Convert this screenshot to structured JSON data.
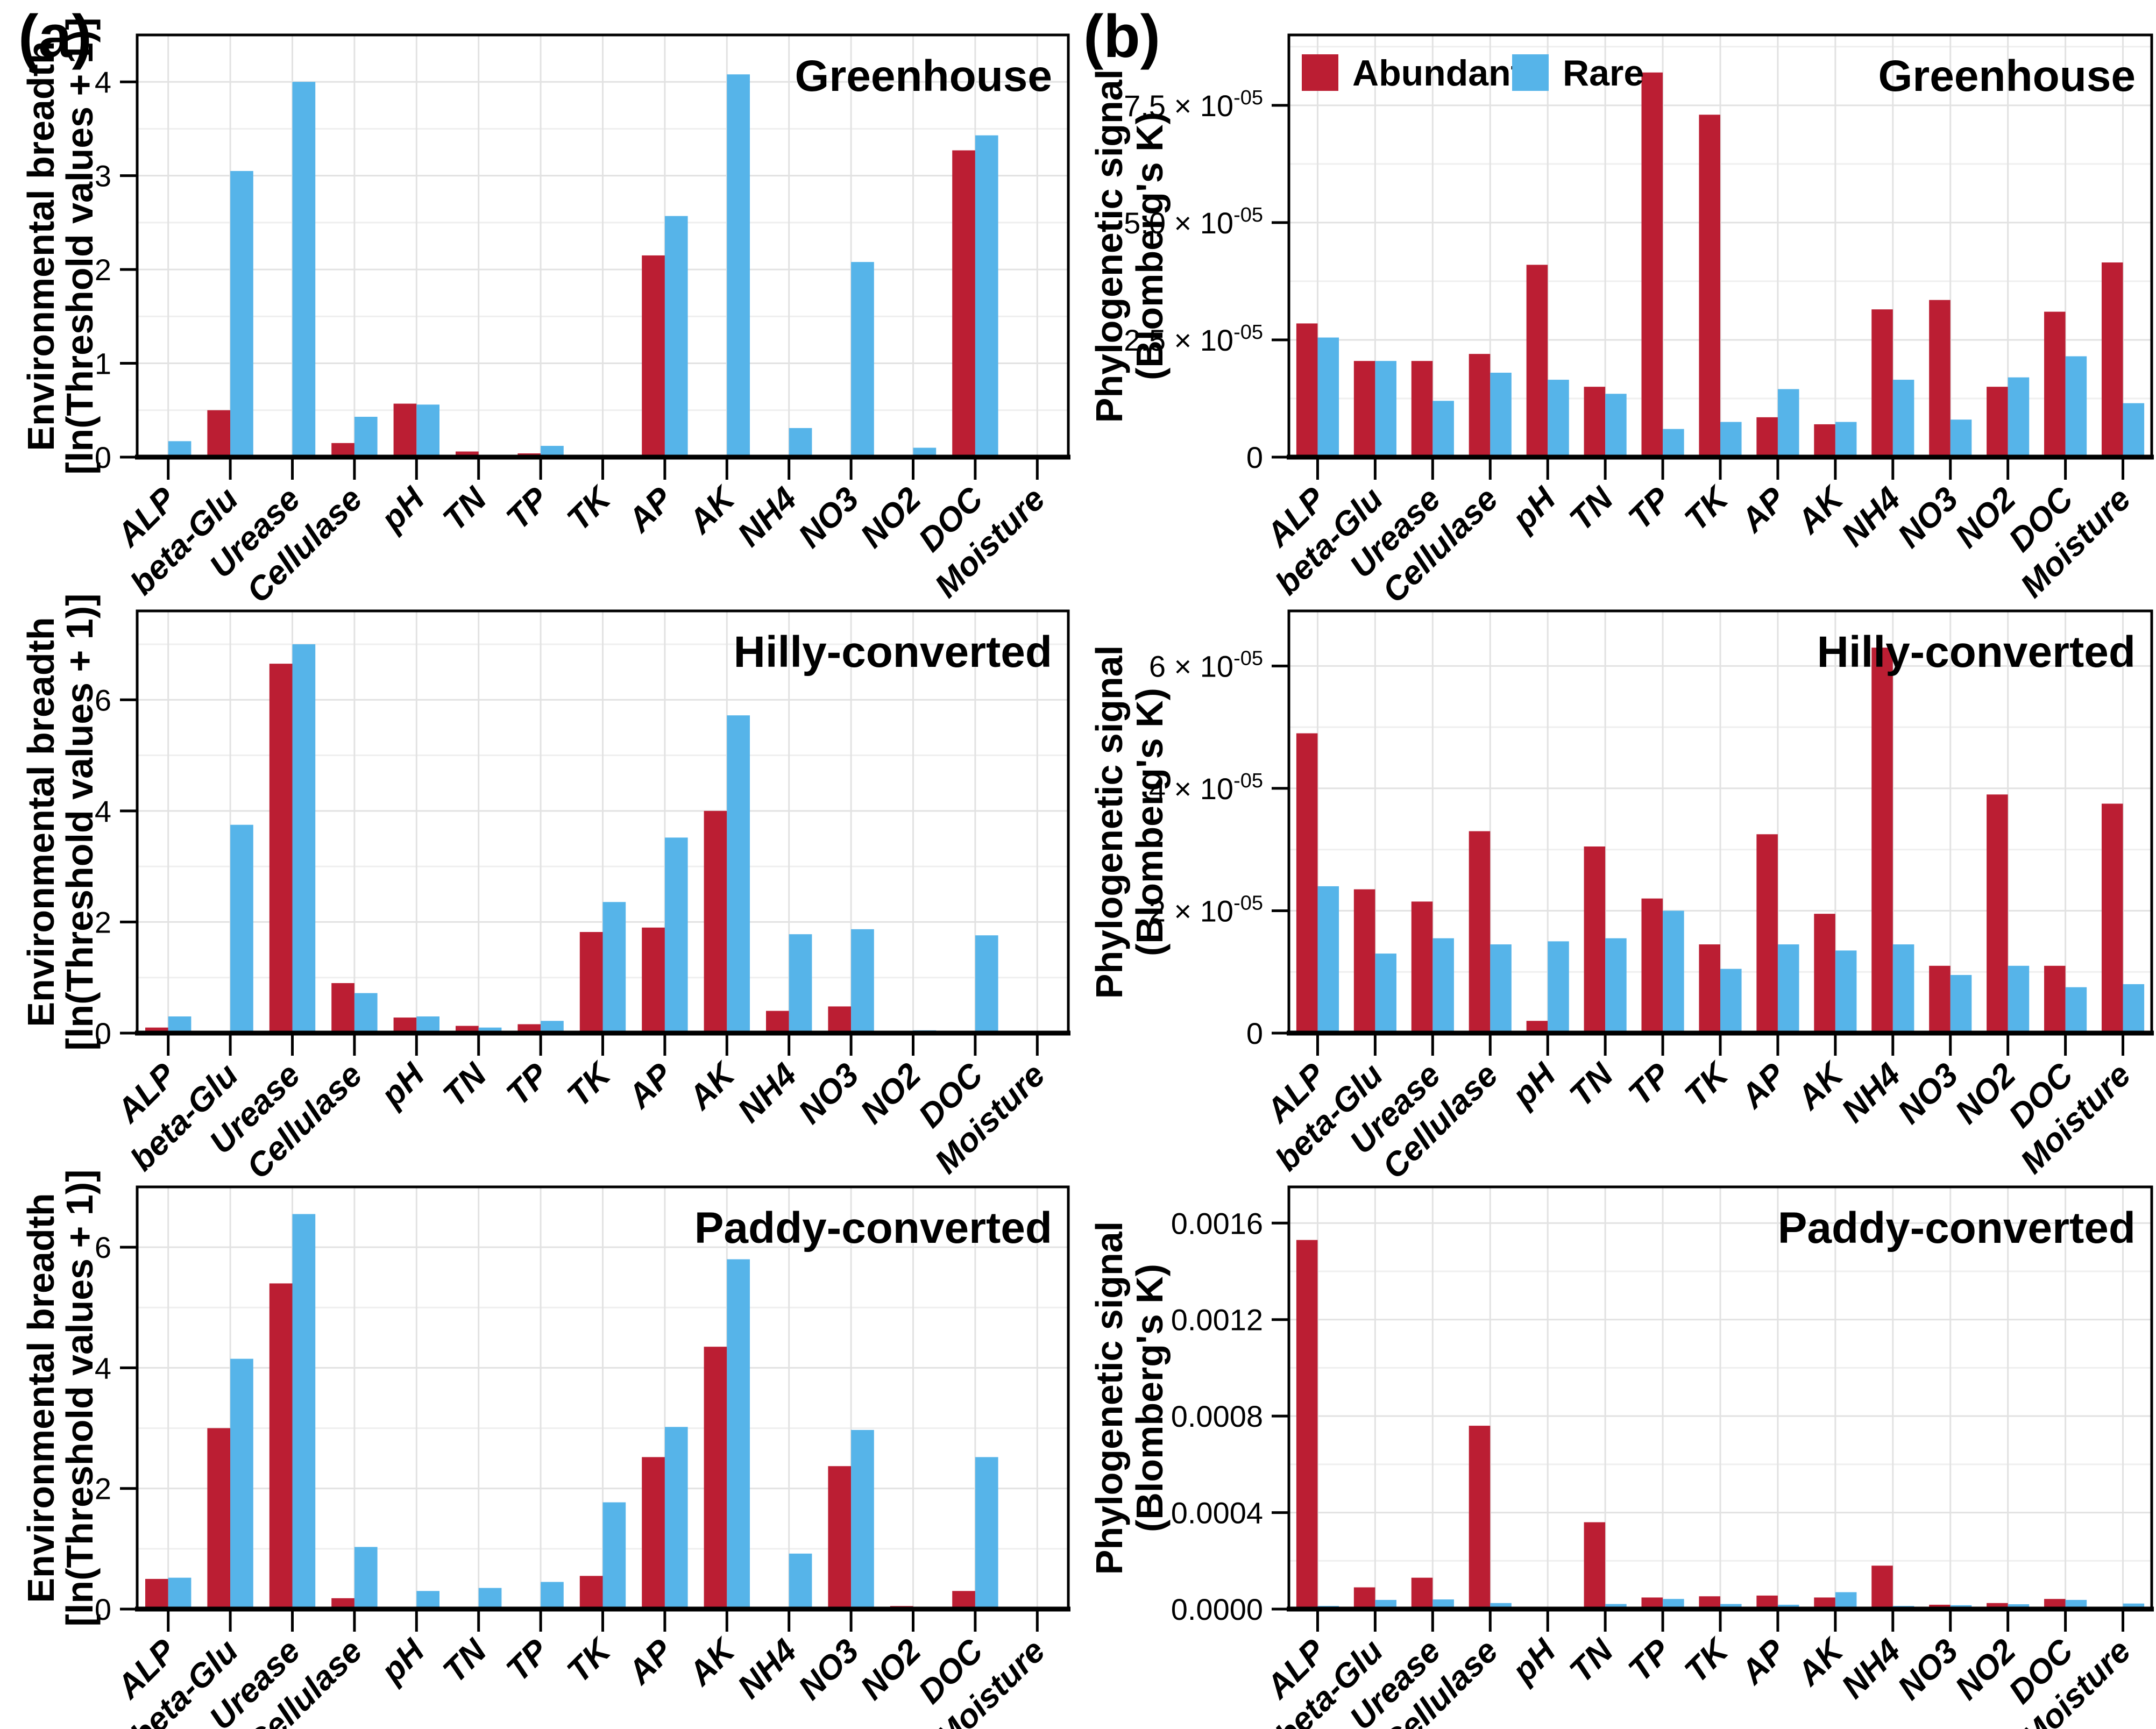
{
  "figure": {
    "label_a": "(a)",
    "label_b": "(b)"
  },
  "colors": {
    "abundant": "#bb1e33",
    "rare": "#56b4e9",
    "grid_major": "#e2e2e2",
    "grid_minor": "#efefef",
    "axis": "#000000",
    "background": "#ffffff"
  },
  "legend": {
    "abundant_label": "Abundant",
    "rare_label": "Rare"
  },
  "categories": [
    "ALP",
    "beta-Glu",
    "Urease",
    "Cellulase",
    "pH",
    "TN",
    "TP",
    "TK",
    "AP",
    "AK",
    "NH4",
    "NO3",
    "NO2",
    "DOC",
    "Moisture"
  ],
  "chart_data": [
    {
      "id": "env-greenhouse",
      "panel": "a",
      "column": "left",
      "type": "bar",
      "title": "Greenhouse",
      "ylabel": [
        "Environmental breadth",
        "[ln(Threshold values + 1)]"
      ],
      "ylim": [
        0,
        4.5
      ],
      "yticks": [
        0,
        1,
        2,
        3,
        4
      ],
      "ytick_labels": [
        "0",
        "1",
        "2",
        "3",
        "4"
      ],
      "show_legend": false,
      "series": [
        {
          "name": "Abundant",
          "values": [
            0,
            0.5,
            0,
            0.15,
            0.57,
            0.06,
            0.04,
            0,
            2.15,
            0,
            0,
            0,
            0,
            3.27,
            0
          ]
        },
        {
          "name": "Rare",
          "values": [
            0.17,
            3.05,
            4.0,
            0.43,
            0.56,
            0,
            0.12,
            0,
            2.57,
            4.08,
            0.31,
            2.08,
            0.1,
            3.43,
            0
          ]
        }
      ]
    },
    {
      "id": "phylo-greenhouse",
      "panel": "b",
      "column": "right",
      "type": "bar",
      "title": "Greenhouse",
      "ylabel": [
        "Phylogenetic signal",
        "(Blomberg's K)"
      ],
      "ylim": [
        0,
        9e-05
      ],
      "yticks": [
        0,
        2.5e-05,
        5e-05,
        7.5e-05
      ],
      "ytick_labels": [
        "0",
        "2.5 × 10^-05",
        "5.0 × 10^-05",
        "7.5 × 10^-05"
      ],
      "show_legend": true,
      "series": [
        {
          "name": "Abundant",
          "values": [
            2.85e-05,
            2.05e-05,
            2.05e-05,
            2.2e-05,
            4.1e-05,
            1.5e-05,
            8.2e-05,
            7.3e-05,
            8.5e-06,
            7e-06,
            3.15e-05,
            3.35e-05,
            1.5e-05,
            3.1e-05,
            4.15e-05
          ]
        },
        {
          "name": "Rare",
          "values": [
            2.55e-05,
            2.05e-05,
            1.2e-05,
            1.8e-05,
            1.65e-05,
            1.35e-05,
            6e-06,
            7.5e-06,
            1.45e-05,
            7.5e-06,
            1.65e-05,
            8e-06,
            1.7e-05,
            2.15e-05,
            1.15e-05
          ]
        }
      ]
    },
    {
      "id": "env-hilly",
      "panel": "a",
      "column": "left",
      "type": "bar",
      "title": "Hilly-converted",
      "ylabel": [
        "Environmental breadth",
        "[ln(Threshold values + 1)]"
      ],
      "ylim": [
        0,
        7.6
      ],
      "yticks": [
        0,
        2,
        4,
        6
      ],
      "ytick_labels": [
        "0",
        "2",
        "4",
        "6"
      ],
      "show_legend": false,
      "series": [
        {
          "name": "Abundant",
          "values": [
            0.1,
            0,
            6.65,
            0.9,
            0.28,
            0.13,
            0.16,
            1.82,
            1.9,
            4.0,
            0.4,
            0.48,
            0,
            0,
            0
          ]
        },
        {
          "name": "Rare",
          "values": [
            0.3,
            3.75,
            7.0,
            0.72,
            0.3,
            0.1,
            0.22,
            2.36,
            3.52,
            5.72,
            1.78,
            1.87,
            0.05,
            1.76,
            0
          ]
        }
      ]
    },
    {
      "id": "phylo-hilly",
      "panel": "b",
      "column": "right",
      "type": "bar",
      "title": "Hilly-converted",
      "ylabel": [
        "Phylogenetic signal",
        "(Blomberg's K)"
      ],
      "ylim": [
        0,
        6.9e-05
      ],
      "yticks": [
        0,
        2e-05,
        4e-05,
        6e-05
      ],
      "ytick_labels": [
        "0",
        "2 × 10^-05",
        "4 × 10^-05",
        "6 × 10^-05"
      ],
      "show_legend": false,
      "series": [
        {
          "name": "Abundant",
          "values": [
            4.9e-05,
            2.35e-05,
            2.15e-05,
            3.3e-05,
            2e-06,
            3.05e-05,
            2.2e-05,
            1.45e-05,
            3.25e-05,
            1.95e-05,
            6.3e-05,
            1.1e-05,
            3.9e-05,
            1.1e-05,
            3.75e-05
          ]
        },
        {
          "name": "Rare",
          "values": [
            2.4e-05,
            1.3e-05,
            1.55e-05,
            1.45e-05,
            1.5e-05,
            1.55e-05,
            2e-05,
            1.05e-05,
            1.45e-05,
            1.35e-05,
            1.45e-05,
            9.5e-06,
            1.1e-05,
            7.5e-06,
            8e-06
          ]
        }
      ]
    },
    {
      "id": "env-paddy",
      "panel": "a",
      "column": "left",
      "type": "bar",
      "title": "Paddy-converted",
      "ylabel": [
        "Environmental breadth",
        "[ln(Threshold values + 1)]"
      ],
      "ylim": [
        0,
        7.0
      ],
      "yticks": [
        0,
        2,
        4,
        6
      ],
      "ytick_labels": [
        "0",
        "2",
        "4",
        "6"
      ],
      "show_legend": false,
      "series": [
        {
          "name": "Abundant",
          "values": [
            0.5,
            3.0,
            5.4,
            0.18,
            0,
            0,
            0,
            0.55,
            2.52,
            4.35,
            0,
            2.37,
            0.05,
            0.3,
            0
          ]
        },
        {
          "name": "Rare",
          "values": [
            0.52,
            4.15,
            6.55,
            1.03,
            0.3,
            0.35,
            0.45,
            1.77,
            3.02,
            5.8,
            0.92,
            2.97,
            0.04,
            2.52,
            0
          ]
        }
      ]
    },
    {
      "id": "phylo-paddy",
      "panel": "b",
      "column": "right",
      "type": "bar",
      "title": "Paddy-converted",
      "ylabel": [
        "Phylogenetic signal",
        "(Blomberg's K)"
      ],
      "ylim": [
        0,
        0.00175
      ],
      "yticks": [
        0,
        0.0004,
        0.0008,
        0.0012,
        0.0016
      ],
      "ytick_labels": [
        "0.0000",
        "0.0004",
        "0.0008",
        "0.0012",
        "0.0016"
      ],
      "show_legend": false,
      "series": [
        {
          "name": "Abundant",
          "values": [
            0.00153,
            9e-05,
            0.00013,
            0.00076,
            5e-06,
            0.00036,
            4.8e-05,
            5.3e-05,
            5.6e-05,
            4.8e-05,
            0.00018,
            1.8e-05,
            2.5e-05,
            4.2e-05,
            4e-06
          ]
        },
        {
          "name": "Rare",
          "values": [
            1.3e-05,
            3.8e-05,
            4e-05,
            2.5e-05,
            2e-06,
            2.1e-05,
            4.2e-05,
            2.1e-05,
            1.8e-05,
            7e-05,
            1.3e-05,
            1.6e-05,
            2e-05,
            3.8e-05,
            2.3e-05
          ]
        }
      ]
    }
  ]
}
